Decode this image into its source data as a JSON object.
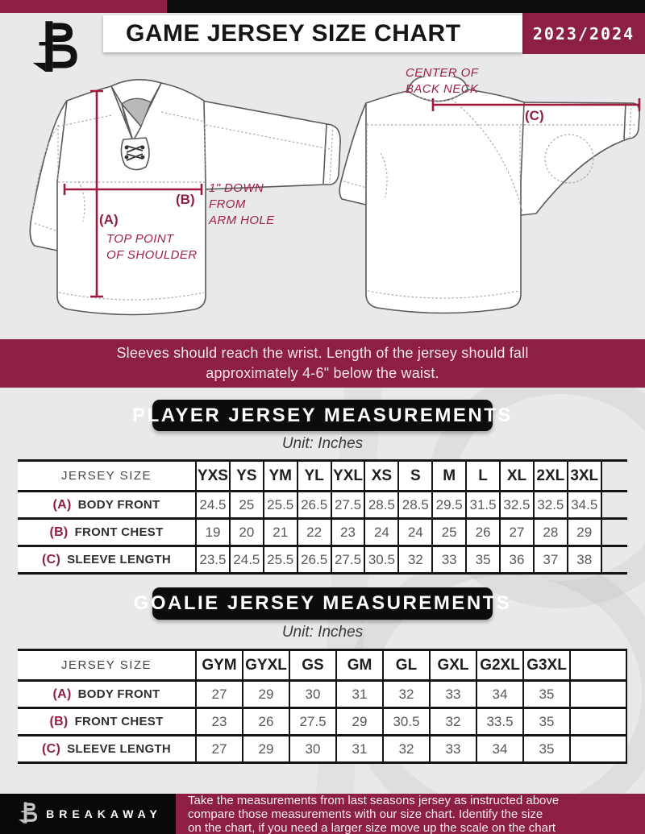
{
  "colors": {
    "maroon": "#8d1f42",
    "black": "#0d0d0d",
    "page_bg": "#e9e9eb",
    "measure_red": "#9e1b3e"
  },
  "header": {
    "logo": "breakaway-b-monogram",
    "title": "GAME JERSEY SIZE CHART",
    "season": "2023/2024"
  },
  "diagram": {
    "front": {
      "marker_a": "(A)",
      "marker_a_caption": "TOP POINT\nOF SHOULDER",
      "marker_b": "(B)",
      "marker_b_caption": "1\" DOWN\nFROM\nARM HOLE"
    },
    "back": {
      "caption": "CENTER OF\nBACK NECK",
      "marker_c": "(C)"
    }
  },
  "banner": {
    "line1": "Sleeves should reach the wrist. Length of the jersey should fall",
    "line2": "approximately 4-6\" below the waist."
  },
  "player_section": {
    "title": "PLAYER JERSEY MEASUREMENTS",
    "unit": "Unit: Inches"
  },
  "goalie_section": {
    "title": "GOALIE JERSEY MEASUREMENTS",
    "unit": "Unit: Inches"
  },
  "player_table": {
    "header_label": "JERSEY SIZE",
    "sizes": [
      "YXS",
      "YS",
      "YM",
      "YL",
      "YXL",
      "XS",
      "S",
      "M",
      "L",
      "XL",
      "2XL",
      "3XL"
    ],
    "rows": [
      {
        "marker": "(A)",
        "label": "BODY FRONT",
        "values": [
          "24.5",
          "25",
          "25.5",
          "26.5",
          "27.5",
          "28.5",
          "28.5",
          "29.5",
          "31.5",
          "32.5",
          "32.5",
          "34.5"
        ]
      },
      {
        "marker": "(B)",
        "label": "FRONT CHEST",
        "values": [
          "19",
          "20",
          "21",
          "22",
          "23",
          "24",
          "24",
          "25",
          "26",
          "27",
          "28",
          "29"
        ]
      },
      {
        "marker": "(C)",
        "label": "SLEEVE LENGTH",
        "values": [
          "23.5",
          "24.5",
          "25.5",
          "26.5",
          "27.5",
          "30.5",
          "32",
          "33",
          "35",
          "36",
          "37",
          "38"
        ]
      }
    ]
  },
  "goalie_table": {
    "header_label": "JERSEY SIZE",
    "sizes": [
      "GYM",
      "GYXL",
      "GS",
      "GM",
      "GL",
      "GXL",
      "G2XL",
      "G3XL",
      ""
    ],
    "rows": [
      {
        "marker": "(A)",
        "label": "BODY FRONT",
        "values": [
          "27",
          "29",
          "30",
          "31",
          "32",
          "33",
          "34",
          "35",
          ""
        ]
      },
      {
        "marker": "(B)",
        "label": "FRONT CHEST",
        "values": [
          "23",
          "26",
          "27.5",
          "29",
          "30.5",
          "32",
          "33.5",
          "35",
          ""
        ]
      },
      {
        "marker": "(C)",
        "label": "SLEEVE LENGTH",
        "values": [
          "27",
          "29",
          "30",
          "31",
          "32",
          "33",
          "34",
          "35",
          ""
        ]
      }
    ]
  },
  "footer": {
    "brand": "BREAKAWAY",
    "note": "Take the measurements from last seasons jersey as instructed above\ncompare those measurements  with our size chart. Identify the size\non the chart, if you need a larger size move up the scale on the chart"
  }
}
